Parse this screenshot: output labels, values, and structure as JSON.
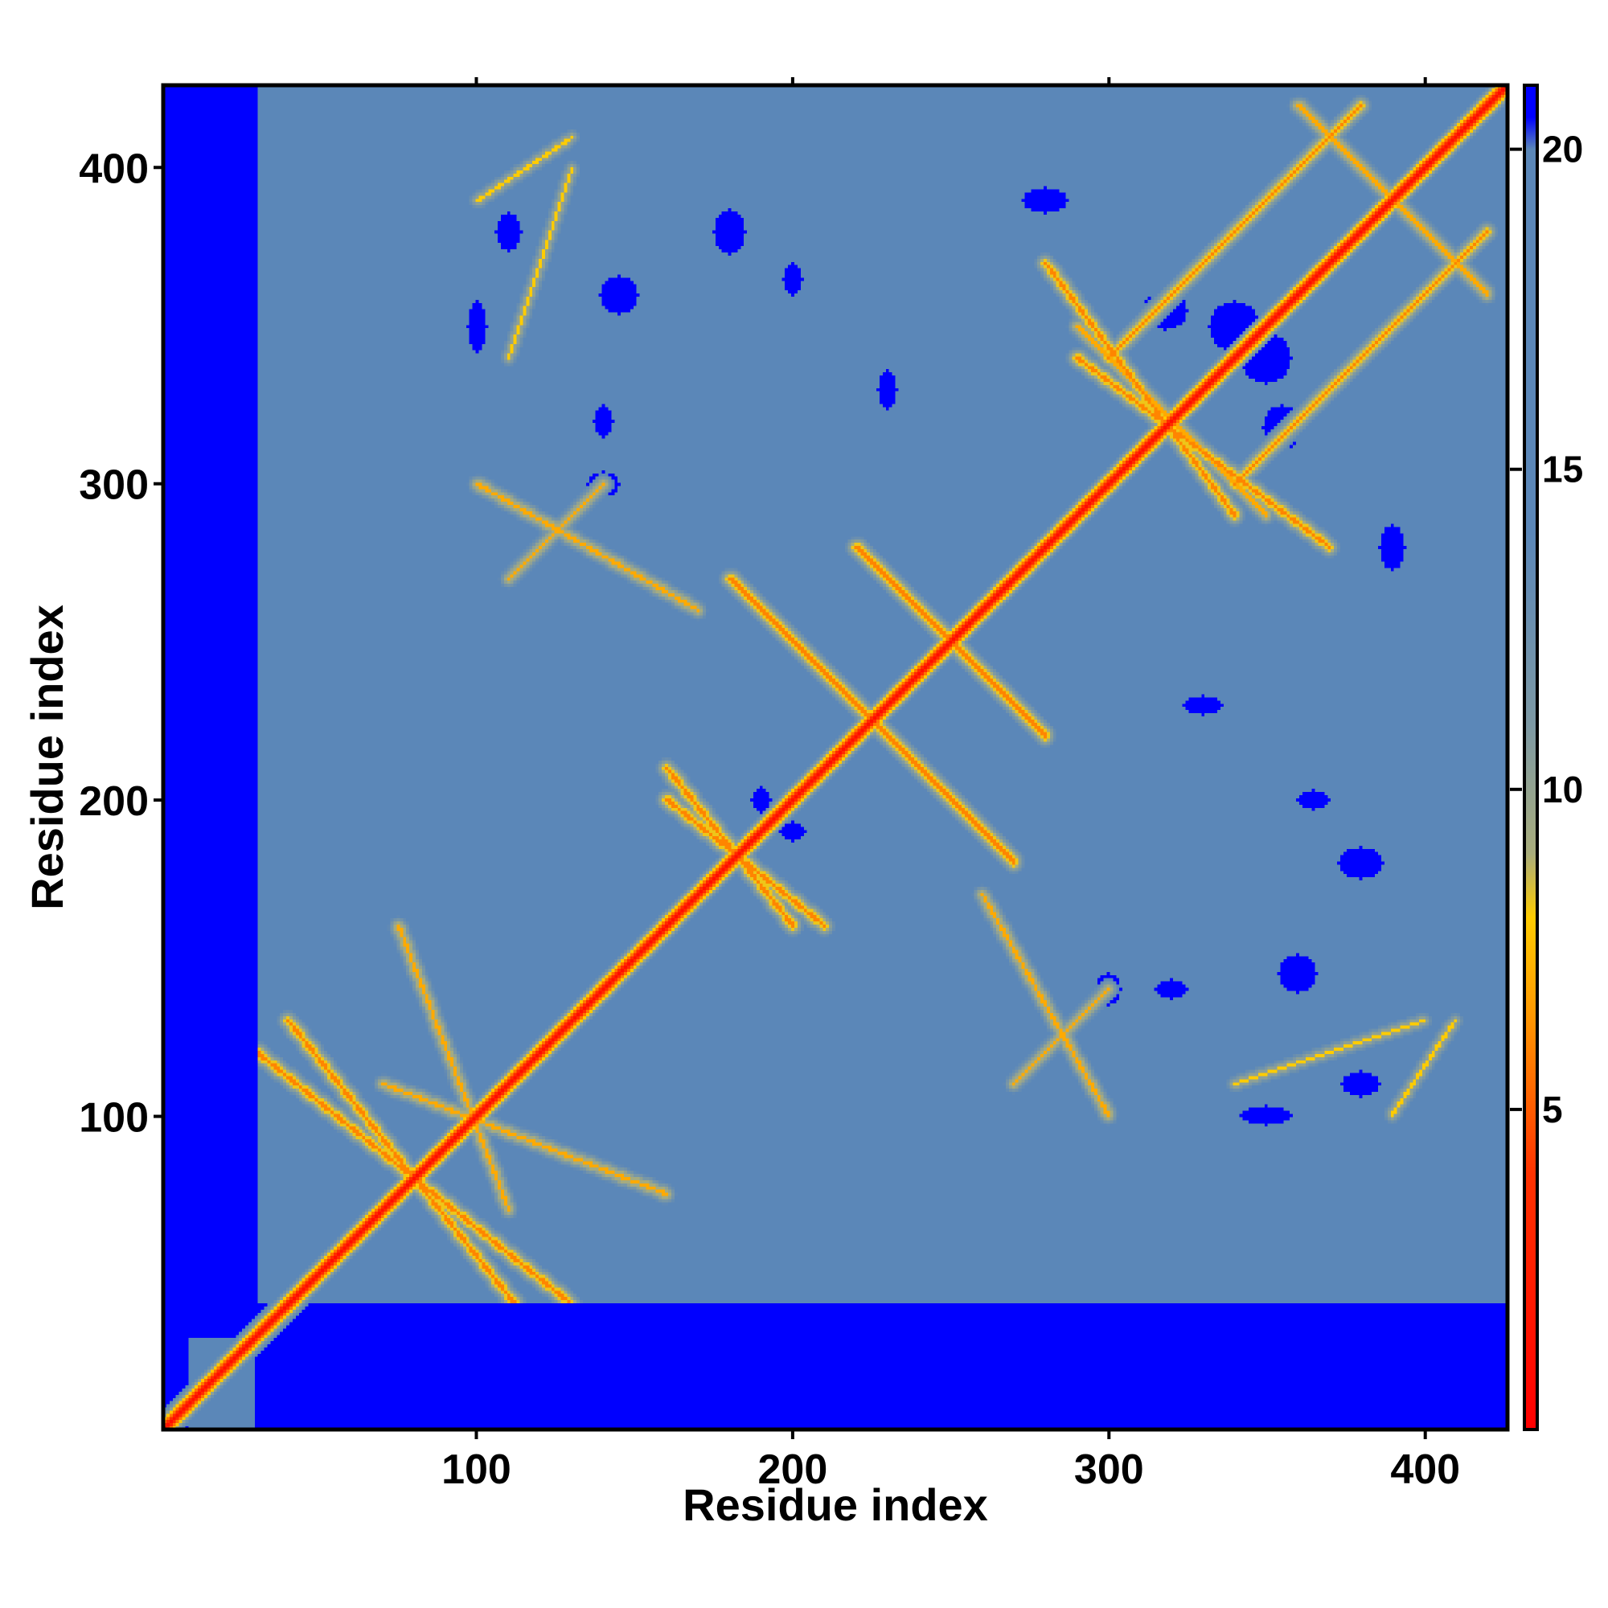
{
  "chart_data": {
    "type": "heatmap",
    "title": "",
    "xlabel": "Residue index",
    "ylabel": "Residue index",
    "xlim": [
      1,
      426
    ],
    "ylim": [
      1,
      426
    ],
    "x_ticks": [
      100,
      200,
      300,
      400
    ],
    "y_ticks": [
      100,
      200,
      300,
      400
    ],
    "x_tick_labels": [
      "100",
      "200",
      "300",
      "400"
    ],
    "y_tick_labels": [
      "100",
      "200",
      "300",
      "400"
    ],
    "colorbar": {
      "range": [
        0,
        21
      ],
      "ticks": [
        5,
        10,
        15,
        20
      ],
      "tick_labels": [
        "5",
        "10",
        "15",
        "20"
      ],
      "stops": [
        {
          "value": 0,
          "color": "#ff0000"
        },
        {
          "value": 4,
          "color": "#ff3300"
        },
        {
          "value": 6.5,
          "color": "#ff9900"
        },
        {
          "value": 8,
          "color": "#ffcc00"
        },
        {
          "value": 9,
          "color": "#a9ad7c"
        },
        {
          "value": 11,
          "color": "#7d99a4"
        },
        {
          "value": 14,
          "color": "#5b87b8"
        },
        {
          "value": 20,
          "color": "#5b87b8"
        },
        {
          "value": 20.5,
          "color": "#0000ff"
        },
        {
          "value": 21,
          "color": "#0000ff"
        }
      ]
    },
    "background_value": 17,
    "no_data_value": 21,
    "diagonal": {
      "from": 1,
      "to": 426,
      "value": 1
    },
    "contact_bands": [
      {
        "from": [
          40,
          130
        ],
        "to": [
          120,
          30
        ],
        "value": 6
      },
      {
        "from": [
          70,
          110
        ],
        "to": [
          160,
          75
        ],
        "value": 7
      },
      {
        "from": [
          100,
          300
        ],
        "to": [
          170,
          260
        ],
        "value": 7
      },
      {
        "from": [
          180,
          270
        ],
        "to": [
          260,
          190
        ],
        "value": 6
      },
      {
        "from": [
          160,
          210
        ],
        "to": [
          200,
          160
        ],
        "value": 6
      },
      {
        "from": [
          220,
          280
        ],
        "to": [
          280,
          220
        ],
        "value": 6
      },
      {
        "from": [
          280,
          370
        ],
        "to": [
          340,
          290
        ],
        "value": 6
      },
      {
        "from": [
          340,
          300
        ],
        "to": [
          420,
          380
        ],
        "value": 6
      },
      {
        "from": [
          290,
          350
        ],
        "to": [
          350,
          290
        ],
        "value": 7
      },
      {
        "from": [
          360,
          420
        ],
        "to": [
          420,
          360
        ],
        "value": 7
      },
      {
        "from": [
          300,
          140
        ],
        "to": [
          270,
          110
        ],
        "value": 7
      },
      {
        "from": [
          340,
          110
        ],
        "to": [
          400,
          130
        ],
        "value": 8
      },
      {
        "from": [
          100,
          390
        ],
        "to": [
          130,
          410
        ],
        "value": 8
      }
    ],
    "no_data_regions": [
      {
        "x": [
          1,
          30
        ],
        "y": [
          30,
          426
        ]
      },
      {
        "x": [
          30,
          426
        ],
        "y": [
          1,
          40
        ]
      },
      {
        "x": [
          1,
          8
        ],
        "y": [
          1,
          30
        ]
      }
    ],
    "low_contact_patches": [
      {
        "x": 340,
        "y": 350,
        "rx": 8,
        "ry": 8
      },
      {
        "x": 355,
        "y": 318,
        "rx": 6,
        "ry": 7
      },
      {
        "x": 110,
        "y": 380,
        "rx": 4,
        "ry": 6
      },
      {
        "x": 180,
        "y": 380,
        "rx": 5,
        "ry": 7
      },
      {
        "x": 140,
        "y": 300,
        "rx": 5,
        "ry": 4
      },
      {
        "x": 280,
        "y": 390,
        "rx": 7,
        "ry": 4
      },
      {
        "x": 330,
        "y": 230,
        "rx": 6,
        "ry": 3
      },
      {
        "x": 365,
        "y": 200,
        "rx": 5,
        "ry": 3
      },
      {
        "x": 200,
        "y": 190,
        "rx": 4,
        "ry": 3
      },
      {
        "x": 320,
        "y": 140,
        "rx": 5,
        "ry": 3
      },
      {
        "x": 360,
        "y": 145,
        "rx": 6,
        "ry": 6
      },
      {
        "x": 350,
        "y": 100,
        "rx": 8,
        "ry": 3
      }
    ]
  }
}
